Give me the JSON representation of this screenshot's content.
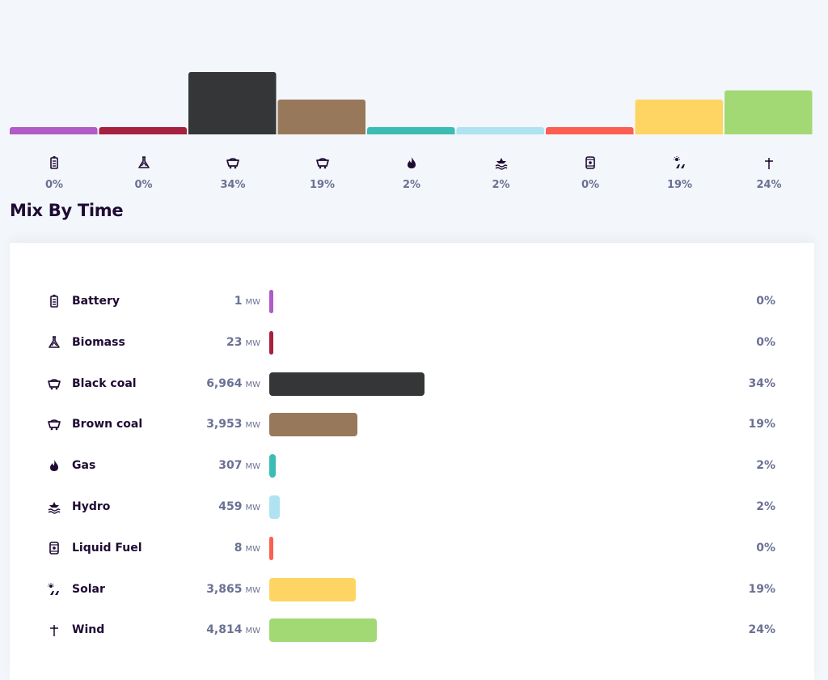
{
  "section_title": "Mix By Time",
  "unit": "MW",
  "chart_data": {
    "type": "bar",
    "title": "Mix By Time",
    "categories": [
      "Battery",
      "Biomass",
      "Black coal",
      "Brown coal",
      "Gas",
      "Hydro",
      "Liquid Fuel",
      "Solar",
      "Wind"
    ],
    "values": [
      1,
      23,
      6964,
      3953,
      307,
      459,
      8,
      3865,
      4814
    ],
    "value_labels": [
      "1",
      "23",
      "6,964",
      "3,953",
      "307",
      "459",
      "8",
      "3,865",
      "4,814"
    ],
    "percents": [
      "0%",
      "0%",
      "34%",
      "19%",
      "2%",
      "2%",
      "0%",
      "19%",
      "24%"
    ],
    "top_chart_values": [
      0,
      0,
      34,
      19,
      2,
      2,
      0,
      19,
      24
    ],
    "colors": [
      "#b05bc6",
      "#a6203f",
      "#343638",
      "#98785a",
      "#3bbdb4",
      "#b0e3f1",
      "#fc5f52",
      "#fed563",
      "#a2d975"
    ],
    "icons": [
      "battery-icon",
      "biomass-icon",
      "coal-icon",
      "coal-icon",
      "gas-flame-icon",
      "hydro-icon",
      "liquid-fuel-icon",
      "solar-icon",
      "wind-icon"
    ],
    "xlabel": "",
    "ylabel": "",
    "grid": false,
    "legend": "none"
  }
}
